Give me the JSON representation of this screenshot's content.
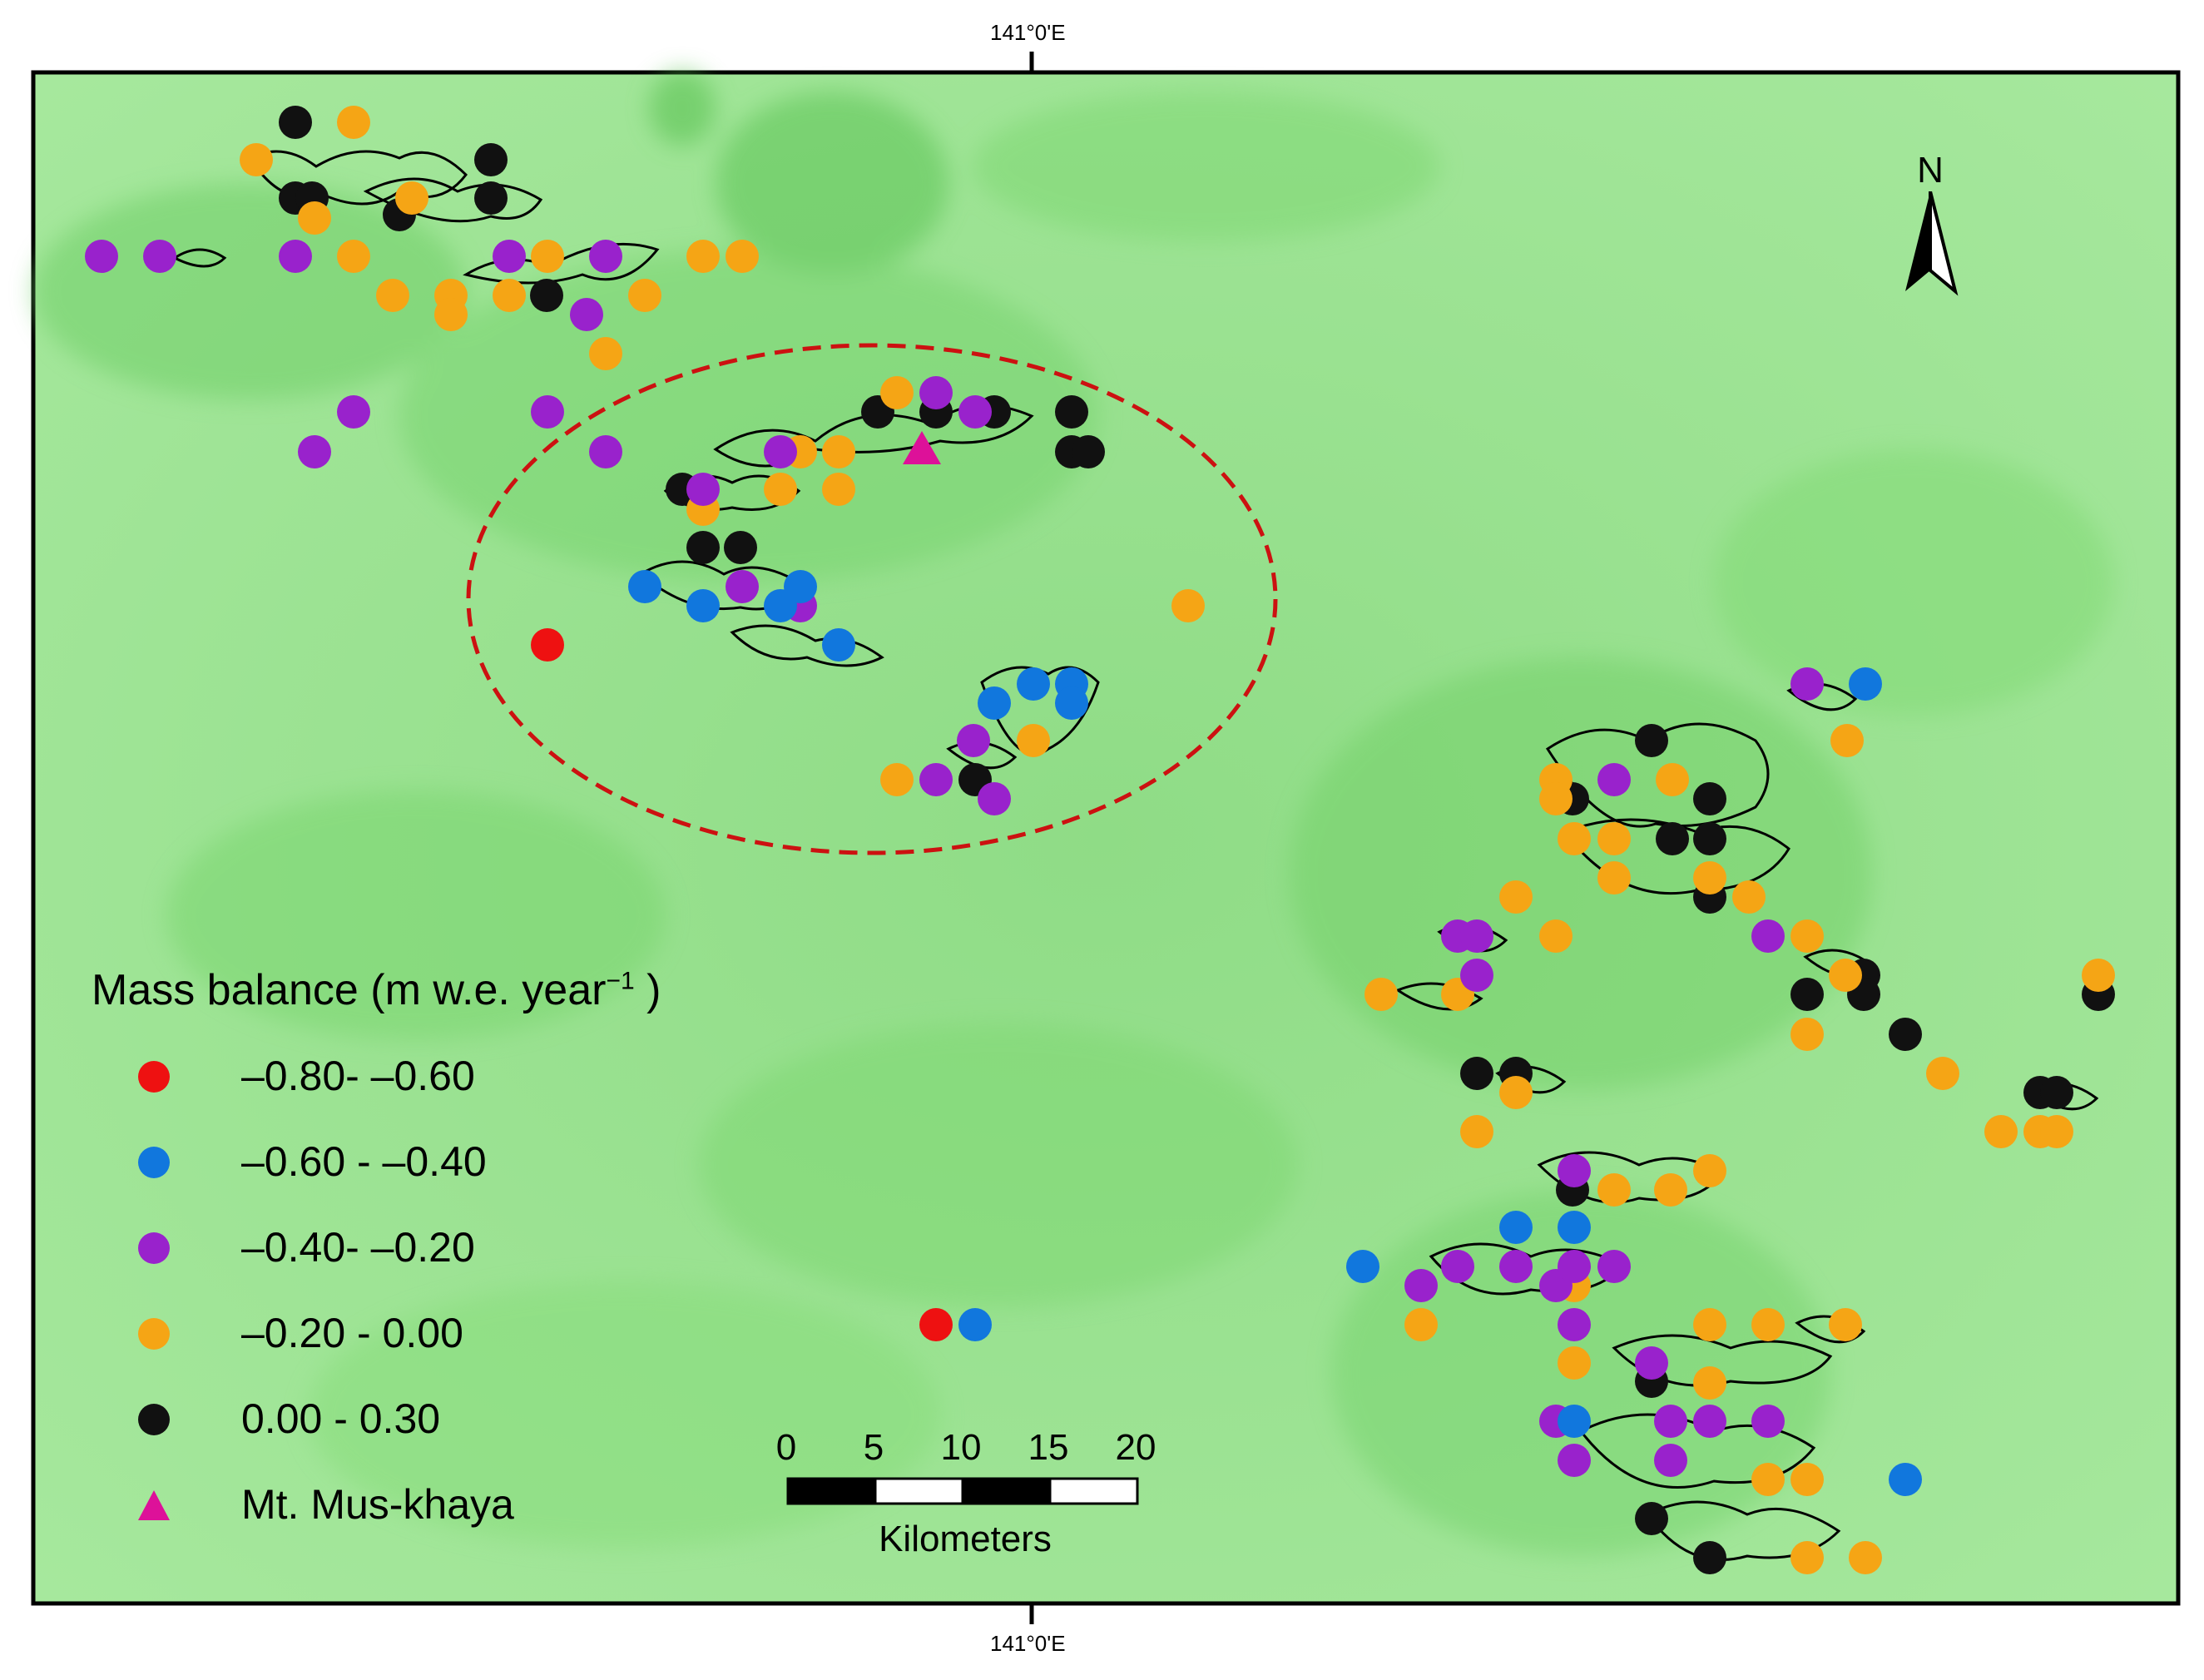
{
  "coords": {
    "top_label": "141°0'E",
    "bottom_label": "141°0'E"
  },
  "colors": {
    "class_1": "#ee1111",
    "class_2": "#1177dd",
    "class_3": "#9922cc",
    "class_4": "#f5a515",
    "class_5": "#111111",
    "peak": "#dd1199",
    "study_area_outline": "#cc1111",
    "terrain_base": "#a8e6a0"
  },
  "legend": {
    "title": "Mass balance (m w.e. year",
    "title_sup": "−1",
    "title_end": " )",
    "items": [
      {
        "label": "–0.80- –0.60",
        "color": "#ee1111",
        "symbol": "circle"
      },
      {
        "label": "–0.60 - –0.40",
        "color": "#1177dd",
        "symbol": "circle"
      },
      {
        "label": "–0.40- –0.20",
        "color": "#9922cc",
        "symbol": "circle"
      },
      {
        "label": "–0.20 - 0.00",
        "color": "#f5a515",
        "symbol": "circle"
      },
      {
        "label": "0.00 - 0.30",
        "color": "#111111",
        "symbol": "circle"
      },
      {
        "label": "Mt. Mus-khaya",
        "color": "#dd1199",
        "symbol": "triangle"
      }
    ]
  },
  "north_arrow": {
    "label": "N"
  },
  "scalebar": {
    "ticks": [
      "0",
      "5",
      "10",
      "15",
      "20"
    ],
    "unit": "Kilometers"
  }
}
